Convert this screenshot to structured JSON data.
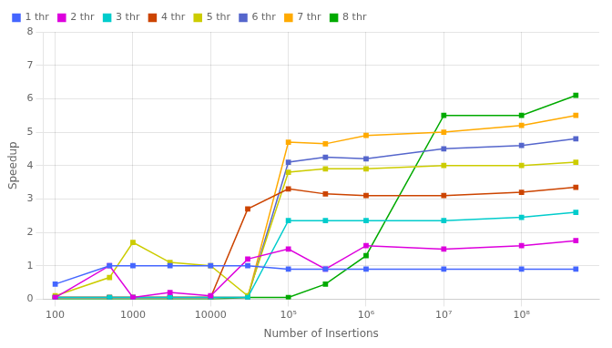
{
  "chart_data": {
    "type": "line",
    "xlabel": "Number of Insertions",
    "ylabel": "Speedup",
    "x": [
      100,
      500,
      1000,
      3000,
      10000,
      30000,
      100000,
      300000,
      1000000,
      10000000,
      100000000,
      500000000
    ],
    "series": [
      {
        "name": "1 thr",
        "color": "#4466ff",
        "values": [
          0.45,
          1.0,
          1.0,
          1.0,
          1.0,
          1.0,
          0.9,
          0.9,
          0.9,
          0.9,
          0.9,
          0.9
        ]
      },
      {
        "name": "2 thr",
        "color": "#dd00dd",
        "values": [
          0.05,
          1.0,
          0.05,
          0.2,
          0.1,
          1.2,
          1.5,
          0.9,
          1.6,
          1.5,
          1.6,
          1.75
        ]
      },
      {
        "name": "3 thr",
        "color": "#00cccc",
        "values": [
          0.05,
          0.05,
          0.05,
          0.05,
          0.05,
          0.05,
          2.35,
          2.35,
          2.35,
          2.35,
          2.45,
          2.6
        ]
      },
      {
        "name": "4 thr",
        "color": "#cc4400",
        "values": [
          0.05,
          0.05,
          0.05,
          0.05,
          0.05,
          2.7,
          3.3,
          3.15,
          3.1,
          3.1,
          3.2,
          3.35
        ]
      },
      {
        "name": "5 thr",
        "color": "#cccc00",
        "values": [
          0.1,
          0.65,
          1.7,
          1.1,
          1.0,
          0.1,
          3.8,
          3.9,
          3.9,
          4.0,
          4.0,
          4.1
        ]
      },
      {
        "name": "6 thr",
        "color": "#5566cc",
        "values": [
          0.05,
          0.05,
          0.05,
          0.05,
          0.05,
          0.05,
          4.1,
          4.25,
          4.2,
          4.5,
          4.6,
          4.8
        ]
      },
      {
        "name": "7 thr",
        "color": "#ffaa00",
        "values": [
          0.05,
          0.05,
          0.05,
          0.05,
          0.05,
          0.05,
          4.7,
          4.65,
          4.9,
          5.0,
          5.2,
          5.5
        ]
      },
      {
        "name": "8 thr",
        "color": "#00aa00",
        "values": [
          0.0,
          0.0,
          0.0,
          0.0,
          0.0,
          0.05,
          0.05,
          0.45,
          1.3,
          5.5,
          5.5,
          6.1
        ]
      }
    ],
    "log": "x",
    "xlim": [
      70,
      1000000000
    ],
    "xticks": [
      100,
      1000,
      10000,
      {
        "value": 100000,
        "label": "10⁵"
      },
      {
        "value": 1000000,
        "label": "10⁶"
      },
      {
        "value": 10000000,
        "label": "10⁷"
      },
      {
        "value": 100000000,
        "label": "10⁸"
      }
    ],
    "ylim": [
      0,
      8
    ],
    "yticks": [
      0,
      1,
      2,
      3,
      4,
      5,
      6,
      7,
      8
    ],
    "grid": true,
    "legend": "upper left",
    "marker": "square"
  }
}
